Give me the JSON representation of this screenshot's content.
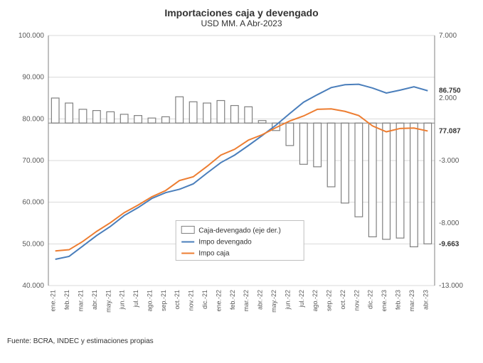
{
  "chart": {
    "type": "combo-bar-line",
    "title": "Importaciones caja y devengado",
    "subtitle": "USD MM. A Abr-2023",
    "title_fontsize": 14,
    "subtitle_fontsize": 12,
    "source": "Fuente: BCRA, INDEC y estimaciones propias",
    "source_fontsize": 10,
    "background_color": "#ffffff",
    "categories": [
      "ene.-21",
      "feb.-21",
      "mar.-21",
      "abr.-21",
      "may.-21",
      "jun.-21",
      "jul.-21",
      "ago.-21",
      "sep.-21",
      "oct.-21",
      "nov.-21",
      "dic.-21",
      "ene.-22",
      "feb.-22",
      "mar.-22",
      "abr.-22",
      "may.-22",
      "jun.-22",
      "jul.-22",
      "ago.-22",
      "sep.-22",
      "oct.-22",
      "nov.-22",
      "dic.-22",
      "ene.-23",
      "feb.-23",
      "mar.-23",
      "abr.-23"
    ],
    "left_axis": {
      "min": 40000,
      "max": 100000,
      "ticks": [
        40000,
        50000,
        60000,
        70000,
        80000,
        90000,
        100000
      ],
      "tick_labels": [
        "40.000",
        "50.000",
        "60.000",
        "70.000",
        "80.000",
        "90.000",
        "100.000"
      ],
      "fontsize": 10,
      "color": "#595959"
    },
    "right_axis": {
      "min": -13000,
      "max": 7000,
      "ticks": [
        -13000,
        -8000,
        -3000,
        2000,
        7000
      ],
      "tick_labels": [
        "-13.000",
        "-8.000",
        "-3.000",
        "2.000",
        "7.000"
      ],
      "fontsize": 10,
      "color": "#595959"
    },
    "grid_color": "#d9d9d9",
    "axis_line_color": "#808080",
    "bars": {
      "name": "Caja-devengado (eje der.)",
      "values": [
        2000,
        1600,
        1100,
        1000,
        900,
        700,
        600,
        400,
        500,
        2100,
        1700,
        1600,
        1800,
        1400,
        1300,
        200,
        -600,
        -1800,
        -3300,
        -3500,
        -5100,
        -6400,
        -7500,
        -9100,
        -9300,
        -9200,
        -9900,
        -9663
      ],
      "fill": "#ffffff",
      "stroke": "#808080",
      "stroke_width": 1.2,
      "bar_width": 0.55
    },
    "lines": [
      {
        "name": "Impo devengado",
        "color": "#4a7ebb",
        "width": 2,
        "values": [
          46300,
          47000,
          49500,
          52000,
          54200,
          56800,
          58700,
          60900,
          62300,
          63100,
          64400,
          67000,
          69500,
          71300,
          73600,
          76000,
          78500,
          81300,
          84000,
          85800,
          87500,
          88200,
          88300,
          87400,
          86200,
          86900,
          87700,
          86750
        ],
        "end_label": "86.750"
      },
      {
        "name": "Impo caja",
        "color": "#ed7d31",
        "width": 2,
        "values": [
          48300,
          48600,
          50600,
          53000,
          55100,
          57500,
          59300,
          61300,
          62800,
          65200,
          66100,
          68600,
          71300,
          72700,
          74900,
          76200,
          77900,
          79500,
          80700,
          82300,
          82400,
          81800,
          80800,
          78300,
          76900,
          77700,
          77800,
          77087
        ],
        "end_label": "77.087"
      }
    ],
    "bar_end_label": "-9.663",
    "legend": {
      "items": [
        {
          "type": "bar",
          "label": "Caja-devengado (eje der.)"
        },
        {
          "type": "line",
          "label": "Impo devengado",
          "color": "#4a7ebb"
        },
        {
          "type": "line",
          "label": "Impo caja",
          "color": "#ed7d31"
        }
      ],
      "fontsize": 10,
      "position": "bottom-center-inside"
    },
    "label_fontsize": 10
  }
}
